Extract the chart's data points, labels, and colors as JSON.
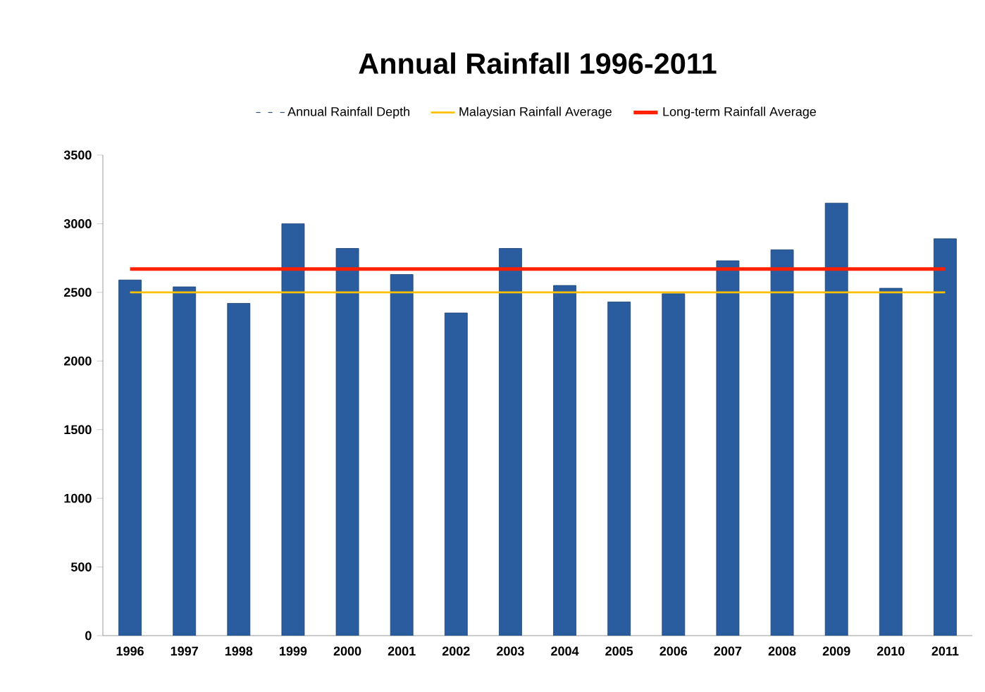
{
  "chart_data": {
    "type": "bar",
    "title": "Annual Rainfall 1996-2011",
    "categories": [
      "1996",
      "1997",
      "1998",
      "1999",
      "2000",
      "2001",
      "2002",
      "2003",
      "2004",
      "2005",
      "2006",
      "2007",
      "2008",
      "2009",
      "2010",
      "2011"
    ],
    "series": [
      {
        "name": "Annual Rainfall Depth",
        "color": "#2a5d9f",
        "values": [
          2590,
          2540,
          2420,
          3000,
          2820,
          2630,
          2350,
          2820,
          2550,
          2430,
          2490,
          2730,
          2810,
          3150,
          2530,
          2890
        ]
      },
      {
        "name": "Malaysian Rainfall Average",
        "type": "line",
        "color": "#ffc000",
        "values": [
          2500,
          2500,
          2500,
          2500,
          2500,
          2500,
          2500,
          2500,
          2500,
          2500,
          2500,
          2500,
          2500,
          2500,
          2500,
          2500
        ]
      },
      {
        "name": "Long-term Rainfall Average",
        "type": "line",
        "color": "#ff2000",
        "values": [
          2670,
          2670,
          2670,
          2670,
          2670,
          2670,
          2670,
          2670,
          2670,
          2670,
          2670,
          2670,
          2670,
          2670,
          2670,
          2670
        ]
      }
    ],
    "ylim": [
      0,
      3500
    ],
    "yticks": [
      0,
      500,
      1000,
      1500,
      2000,
      2500,
      3000,
      3500
    ],
    "grid": false,
    "legend": "top",
    "marker": "none"
  }
}
